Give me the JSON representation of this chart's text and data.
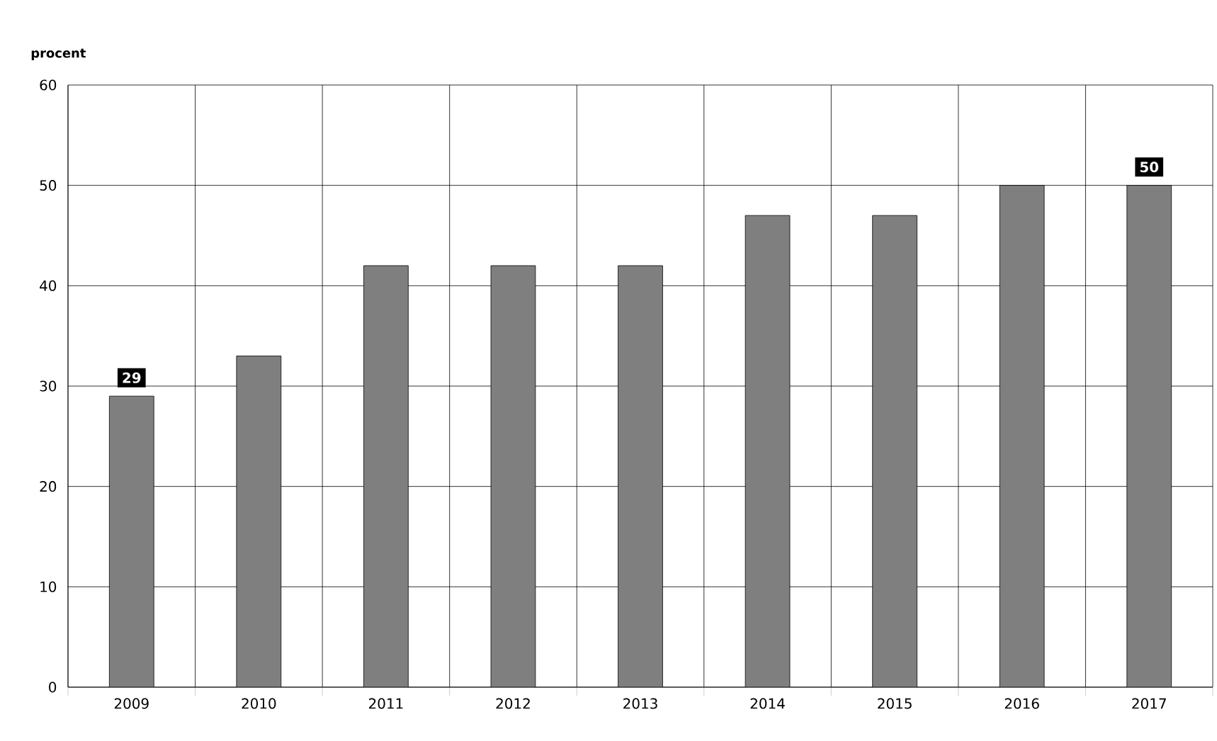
{
  "chart_data": {
    "type": "bar",
    "ylabel": "procent",
    "categories": [
      "2009",
      "2010",
      "2011",
      "2012",
      "2013",
      "2014",
      "2015",
      "2016",
      "2017"
    ],
    "values": [
      29,
      33,
      42,
      42,
      42,
      47,
      47,
      50,
      50
    ],
    "value_labels": [
      "29",
      null,
      null,
      null,
      null,
      null,
      null,
      null,
      "50"
    ],
    "color": "#7f7f7f",
    "ylim": [
      0,
      60
    ],
    "yticks": [
      0,
      10,
      20,
      30,
      40,
      50,
      60
    ],
    "grid": true
  }
}
